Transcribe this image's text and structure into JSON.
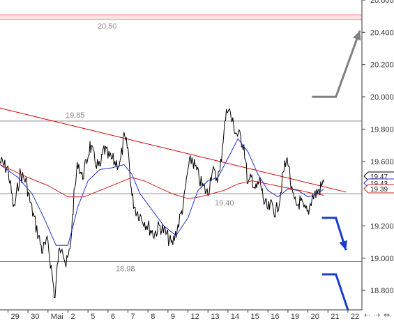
{
  "chart_data": {
    "type": "line",
    "title": "",
    "xlabel": "",
    "ylabel": "",
    "ylim": [
      18.68,
      20.6
    ],
    "y_ticks": [
      "20.600",
      "20.400",
      "20.200",
      "20.000",
      "19.800",
      "19.600",
      "19.200",
      "19.000",
      "18.800"
    ],
    "x_ticks": [
      {
        "label": "29",
        "day": 0
      },
      {
        "label": "30",
        "day": 1
      },
      {
        "label": "Mai",
        "day": 2
      },
      {
        "label": "2",
        "day": 3
      },
      {
        "label": "5",
        "day": 4
      },
      {
        "label": "6",
        "day": 5
      },
      {
        "label": "7",
        "day": 6
      },
      {
        "label": "8",
        "day": 7
      },
      {
        "label": "9",
        "day": 8
      },
      {
        "label": "12",
        "day": 9
      },
      {
        "label": "13",
        "day": 10
      },
      {
        "label": "14",
        "day": 11
      },
      {
        "label": "15",
        "day": 12
      },
      {
        "label": "16",
        "day": 13
      },
      {
        "label": "19",
        "day": 14
      },
      {
        "label": "20",
        "day": 15
      },
      {
        "label": "21",
        "day": 16
      },
      {
        "label": "22",
        "day": 17
      }
    ],
    "horizontal_levels": [
      {
        "value": 20.5,
        "label": "20,50",
        "color": "#f08080",
        "band": true
      },
      {
        "value": 19.85,
        "label": "19,85",
        "color": "#888888"
      },
      {
        "value": 19.4,
        "label": "19,40",
        "color": "#888888"
      },
      {
        "value": 18.98,
        "label": "18,98",
        "color": "#888888"
      }
    ],
    "trendline": {
      "color": "#cc0000",
      "points": [
        {
          "day": -0.4,
          "value": 19.93
        },
        {
          "day": 16.9,
          "value": 19.41
        }
      ]
    },
    "series": [
      {
        "kind": "price",
        "color": "#000000",
        "points": [
          [
            -0.4,
            19.6
          ],
          [
            0.0,
            19.55
          ],
          [
            0.3,
            19.3
          ],
          [
            0.6,
            19.52
          ],
          [
            0.9,
            19.48
          ],
          [
            1.1,
            19.35
          ],
          [
            1.4,
            19.2
          ],
          [
            1.7,
            19.05
          ],
          [
            2.0,
            19.1
          ],
          [
            2.2,
            18.9
          ],
          [
            2.35,
            18.75
          ],
          [
            2.5,
            19.0
          ],
          [
            2.7,
            19.1
          ],
          [
            2.9,
            18.95
          ],
          [
            3.1,
            19.05
          ],
          [
            3.3,
            19.38
          ],
          [
            3.5,
            19.6
          ],
          [
            3.7,
            19.5
          ],
          [
            3.9,
            19.58
          ],
          [
            4.1,
            19.7
          ],
          [
            4.3,
            19.62
          ],
          [
            4.6,
            19.55
          ],
          [
            4.8,
            19.68
          ],
          [
            5.0,
            19.63
          ],
          [
            5.3,
            19.6
          ],
          [
            5.6,
            19.58
          ],
          [
            5.8,
            19.74
          ],
          [
            6.0,
            19.68
          ],
          [
            6.2,
            19.38
          ],
          [
            6.4,
            19.3
          ],
          [
            6.7,
            19.25
          ],
          [
            7.0,
            19.2
          ],
          [
            7.3,
            19.15
          ],
          [
            7.6,
            19.2
          ],
          [
            7.9,
            19.15
          ],
          [
            8.2,
            19.08
          ],
          [
            8.5,
            19.2
          ],
          [
            8.8,
            19.35
          ],
          [
            9.0,
            19.55
          ],
          [
            9.2,
            19.62
          ],
          [
            9.4,
            19.55
          ],
          [
            9.7,
            19.45
          ],
          [
            10.0,
            19.4
          ],
          [
            10.2,
            19.55
          ],
          [
            10.4,
            19.5
          ],
          [
            10.6,
            19.53
          ],
          [
            10.8,
            19.8
          ],
          [
            11.0,
            19.95
          ],
          [
            11.2,
            19.85
          ],
          [
            11.4,
            19.78
          ],
          [
            11.6,
            19.75
          ],
          [
            11.8,
            19.7
          ],
          [
            12.0,
            19.45
          ],
          [
            12.2,
            19.5
          ],
          [
            12.4,
            19.42
          ],
          [
            12.6,
            19.48
          ],
          [
            12.8,
            19.35
          ],
          [
            13.0,
            19.3
          ],
          [
            13.2,
            19.33
          ],
          [
            13.4,
            19.28
          ],
          [
            13.6,
            19.38
          ],
          [
            13.8,
            19.55
          ],
          [
            14.0,
            19.62
          ],
          [
            14.2,
            19.4
          ],
          [
            14.4,
            19.32
          ],
          [
            14.6,
            19.35
          ],
          [
            14.8,
            19.3
          ],
          [
            15.0,
            19.28
          ],
          [
            15.2,
            19.38
          ],
          [
            15.4,
            19.4
          ],
          [
            15.6,
            19.43
          ],
          [
            15.8,
            19.47
          ]
        ]
      },
      {
        "kind": "ma_short",
        "color": "#2233cc",
        "points": [
          [
            -0.4,
            19.58
          ],
          [
            0.5,
            19.5
          ],
          [
            1.2,
            19.4
          ],
          [
            1.8,
            19.25
          ],
          [
            2.4,
            19.08
          ],
          [
            3.0,
            19.08
          ],
          [
            3.5,
            19.32
          ],
          [
            4.0,
            19.48
          ],
          [
            4.6,
            19.55
          ],
          [
            5.2,
            19.56
          ],
          [
            5.8,
            19.58
          ],
          [
            6.2,
            19.52
          ],
          [
            6.6,
            19.4
          ],
          [
            7.2,
            19.3
          ],
          [
            7.8,
            19.2
          ],
          [
            8.4,
            19.14
          ],
          [
            9.0,
            19.25
          ],
          [
            9.5,
            19.42
          ],
          [
            10.0,
            19.48
          ],
          [
            10.5,
            19.5
          ],
          [
            11.0,
            19.62
          ],
          [
            11.5,
            19.74
          ],
          [
            12.0,
            19.66
          ],
          [
            12.5,
            19.52
          ],
          [
            13.0,
            19.42
          ],
          [
            13.5,
            19.38
          ],
          [
            14.0,
            19.43
          ],
          [
            14.5,
            19.42
          ],
          [
            15.0,
            19.38
          ],
          [
            15.5,
            19.4
          ],
          [
            15.8,
            19.43
          ]
        ]
      },
      {
        "kind": "ma_long",
        "color": "#cc2222",
        "points": [
          [
            -0.4,
            19.58
          ],
          [
            1.0,
            19.5
          ],
          [
            2.0,
            19.45
          ],
          [
            3.0,
            19.38
          ],
          [
            3.8,
            19.38
          ],
          [
            4.6,
            19.42
          ],
          [
            5.4,
            19.46
          ],
          [
            6.2,
            19.5
          ],
          [
            6.8,
            19.48
          ],
          [
            7.5,
            19.44
          ],
          [
            8.2,
            19.4
          ],
          [
            9.0,
            19.37
          ],
          [
            9.6,
            19.38
          ],
          [
            10.2,
            19.4
          ],
          [
            10.8,
            19.42
          ],
          [
            11.5,
            19.46
          ],
          [
            12.2,
            19.48
          ],
          [
            13.0,
            19.46
          ],
          [
            13.8,
            19.44
          ],
          [
            14.6,
            19.42
          ],
          [
            15.3,
            19.4
          ],
          [
            15.8,
            19.39
          ]
        ]
      }
    ],
    "value_badges": [
      {
        "label": "19.47",
        "value": 19.47,
        "color": "#000000"
      },
      {
        "label": "19.43",
        "value": 19.43,
        "color": "#2233cc"
      },
      {
        "label": "19.39",
        "value": 19.39,
        "color": "#cc2222"
      }
    ],
    "forecast_arrows": [
      {
        "color": "#808080",
        "direction": "up",
        "points": [
          [
            15.2,
            20.0
          ],
          [
            16.4,
            20.0
          ],
          [
            17.6,
            20.41
          ]
        ]
      },
      {
        "color": "#1a3ccc",
        "direction": "down",
        "points": [
          [
            15.7,
            19.25
          ],
          [
            16.4,
            19.25
          ],
          [
            16.9,
            19.05
          ]
        ]
      },
      {
        "color": "#1a3ccc",
        "direction": "down",
        "points": [
          [
            15.7,
            18.9
          ],
          [
            16.4,
            18.9
          ],
          [
            17.0,
            18.68
          ]
        ]
      }
    ]
  },
  "nav": {
    "left_glyph": "⇠",
    "right_glyph": "⇢",
    "expand_glyph": "⇔"
  }
}
